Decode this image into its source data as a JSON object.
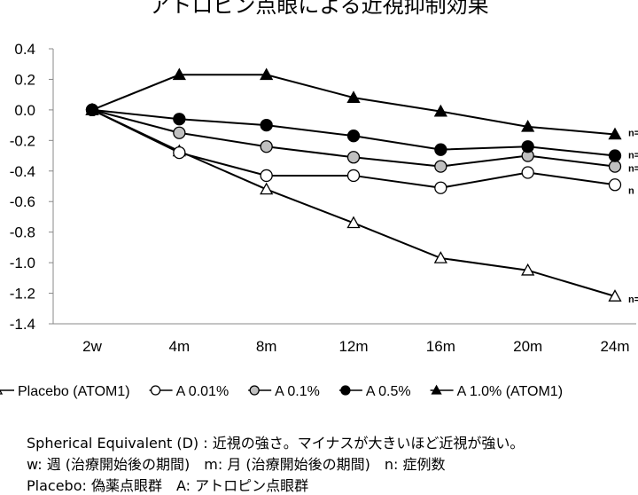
{
  "chart_data": {
    "type": "line",
    "title": "アトロピン点眼による近視抑制効果",
    "xlabel": "",
    "ylabel": "Spherical Equivalent (D)",
    "categories": [
      "2w",
      "4m",
      "8m",
      "12m",
      "16m",
      "20m",
      "24m"
    ],
    "yticks": [
      "0.4",
      "0.2",
      "0.0",
      "-0.2",
      "-0.4",
      "-0.6",
      "-0.8",
      "-1.0",
      "-1.2",
      "-1.4"
    ],
    "ylim": [
      -1.4,
      0.4
    ],
    "grid": false,
    "legend_position": "bottom",
    "series": [
      {
        "name": "Placebo (ATOM1)",
        "marker": "triangle-open",
        "values": [
          0,
          -0.27,
          -0.52,
          -0.74,
          -0.97,
          -1.05,
          -1.22
        ],
        "end_label": "n="
      },
      {
        "name": "A 0.01%",
        "marker": "circle-open",
        "values": [
          0,
          -0.28,
          -0.43,
          -0.43,
          -0.51,
          -0.41,
          -0.49
        ],
        "end_label": "n"
      },
      {
        "name": "A 0.1%",
        "marker": "circle-gray",
        "values": [
          0,
          -0.15,
          -0.24,
          -0.31,
          -0.37,
          -0.3,
          -0.37
        ],
        "end_label": "n="
      },
      {
        "name": "A 0.5%",
        "marker": "circle-filled",
        "values": [
          0,
          -0.06,
          -0.1,
          -0.17,
          -0.26,
          -0.24,
          -0.3
        ],
        "end_label": "n="
      },
      {
        "name": "A 1.0% (ATOM1)",
        "marker": "triangle-filled",
        "values": [
          0,
          0.23,
          0.23,
          0.08,
          -0.01,
          -0.11,
          -0.16
        ],
        "end_label": "n="
      }
    ]
  },
  "notes": [
    "Spherical Equivalent (D) : 近視の強さ。マイナスが大きいほど近視が強い。",
    "w: 週 (治療開始後の期間)　m: 月 (治療開始後の期間)　n: 症例数",
    "Placebo: 偽薬点眼群　A: アトロピン点眼群"
  ],
  "colors": {
    "line": "#000000",
    "gray_fill": "#c0c0c0",
    "axis": "#888888"
  }
}
